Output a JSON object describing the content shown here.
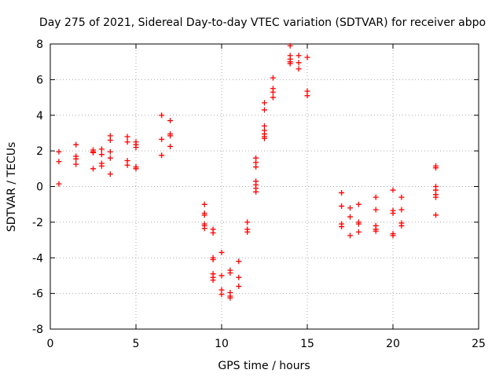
{
  "chart_data": {
    "type": "scatter",
    "title": "Day 275 of 2021, Sidereal Day-to-day VTEC variation (SDTVAR) for receiver abpo",
    "xlabel": "GPS time / hours",
    "ylabel": "SDTVAR / TECUs",
    "xlim": [
      0,
      25
    ],
    "ylim": [
      -8,
      8
    ],
    "xticks": [
      0,
      5,
      10,
      15,
      20,
      25
    ],
    "yticks": [
      -8,
      -6,
      -4,
      -2,
      0,
      2,
      4,
      6,
      8
    ],
    "grid": true,
    "marker": "+",
    "color": "#ff0000",
    "series": [
      {
        "name": "SDTVAR",
        "points": [
          [
            0.5,
            1.95
          ],
          [
            0.5,
            1.4
          ],
          [
            0.5,
            0.15
          ],
          [
            1.5,
            2.35
          ],
          [
            1.5,
            1.7
          ],
          [
            1.5,
            1.55
          ],
          [
            1.5,
            1.25
          ],
          [
            2.5,
            2.05
          ],
          [
            2.5,
            1.95
          ],
          [
            2.5,
            1.9
          ],
          [
            2.5,
            1.0
          ],
          [
            3.0,
            2.1
          ],
          [
            3.0,
            1.8
          ],
          [
            3.0,
            1.3
          ],
          [
            3.0,
            1.15
          ],
          [
            3.5,
            2.85
          ],
          [
            3.5,
            2.6
          ],
          [
            3.5,
            1.95
          ],
          [
            3.5,
            1.6
          ],
          [
            3.5,
            0.7
          ],
          [
            4.5,
            2.8
          ],
          [
            4.5,
            2.5
          ],
          [
            4.5,
            1.45
          ],
          [
            4.5,
            1.2
          ],
          [
            5.0,
            2.5
          ],
          [
            5.0,
            2.35
          ],
          [
            5.0,
            2.2
          ],
          [
            5.0,
            1.1
          ],
          [
            5.0,
            1.0
          ],
          [
            6.5,
            4.0
          ],
          [
            6.5,
            2.65
          ],
          [
            6.5,
            1.75
          ],
          [
            7.0,
            3.7
          ],
          [
            7.0,
            2.95
          ],
          [
            7.0,
            2.85
          ],
          [
            7.0,
            2.25
          ],
          [
            9.0,
            -1.0
          ],
          [
            9.0,
            -1.5
          ],
          [
            9.0,
            -1.6
          ],
          [
            9.0,
            -2.1
          ],
          [
            9.0,
            -2.2
          ],
          [
            9.0,
            -2.35
          ],
          [
            9.5,
            -2.4
          ],
          [
            9.5,
            -2.6
          ],
          [
            9.5,
            -4.0
          ],
          [
            9.5,
            -4.1
          ],
          [
            9.5,
            -4.9
          ],
          [
            9.5,
            -5.1
          ],
          [
            9.5,
            -5.25
          ],
          [
            10.0,
            -3.7
          ],
          [
            10.0,
            -5.0
          ],
          [
            10.0,
            -5.8
          ],
          [
            10.0,
            -6.05
          ],
          [
            10.5,
            -4.7
          ],
          [
            10.5,
            -4.85
          ],
          [
            10.5,
            -5.95
          ],
          [
            10.5,
            -6.15
          ],
          [
            10.5,
            -6.25
          ],
          [
            11.0,
            -4.2
          ],
          [
            11.0,
            -5.1
          ],
          [
            11.0,
            -5.6
          ],
          [
            11.5,
            -2.0
          ],
          [
            11.5,
            -2.4
          ],
          [
            11.5,
            -2.55
          ],
          [
            12.0,
            1.6
          ],
          [
            12.0,
            1.35
          ],
          [
            12.0,
            1.1
          ],
          [
            12.0,
            0.3
          ],
          [
            12.0,
            0.1
          ],
          [
            12.0,
            -0.1
          ],
          [
            12.0,
            -0.3
          ],
          [
            12.5,
            4.7
          ],
          [
            12.5,
            4.3
          ],
          [
            12.5,
            3.4
          ],
          [
            12.5,
            3.15
          ],
          [
            12.5,
            2.95
          ],
          [
            12.5,
            2.8
          ],
          [
            12.5,
            2.7
          ],
          [
            13.0,
            6.1
          ],
          [
            13.0,
            5.5
          ],
          [
            13.0,
            5.3
          ],
          [
            13.0,
            5.0
          ],
          [
            14.0,
            7.9
          ],
          [
            14.0,
            7.35
          ],
          [
            14.0,
            7.15
          ],
          [
            14.0,
            7.0
          ],
          [
            14.0,
            6.9
          ],
          [
            14.5,
            7.35
          ],
          [
            14.5,
            6.95
          ],
          [
            14.5,
            6.6
          ],
          [
            15.0,
            7.25
          ],
          [
            15.0,
            5.35
          ],
          [
            15.0,
            5.1
          ],
          [
            17.0,
            -0.35
          ],
          [
            17.0,
            -1.1
          ],
          [
            17.0,
            -2.1
          ],
          [
            17.0,
            -2.25
          ],
          [
            17.5,
            -1.2
          ],
          [
            17.5,
            -1.7
          ],
          [
            17.5,
            -2.75
          ],
          [
            18.0,
            -1.0
          ],
          [
            18.0,
            -2.0
          ],
          [
            18.0,
            -2.1
          ],
          [
            18.0,
            -2.55
          ],
          [
            19.0,
            -0.6
          ],
          [
            19.0,
            -1.3
          ],
          [
            19.0,
            -2.2
          ],
          [
            19.0,
            -2.4
          ],
          [
            19.0,
            -2.5
          ],
          [
            20.0,
            -0.2
          ],
          [
            20.0,
            -1.35
          ],
          [
            20.0,
            -1.5
          ],
          [
            20.0,
            -2.65
          ],
          [
            20.0,
            -2.75
          ],
          [
            20.5,
            -0.6
          ],
          [
            20.5,
            -1.3
          ],
          [
            20.5,
            -2.05
          ],
          [
            20.5,
            -2.2
          ],
          [
            22.5,
            1.15
          ],
          [
            22.5,
            1.05
          ],
          [
            22.5,
            0.0
          ],
          [
            22.5,
            -0.2
          ],
          [
            22.5,
            -0.45
          ],
          [
            22.5,
            -0.6
          ],
          [
            22.5,
            -1.6
          ]
        ]
      }
    ]
  }
}
